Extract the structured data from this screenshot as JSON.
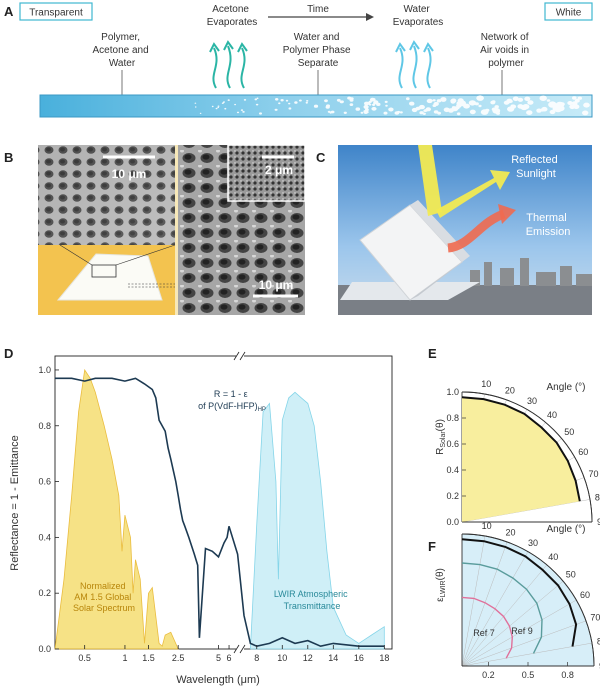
{
  "panel_a": {
    "label": "A",
    "left_box": "Transparent",
    "right_box": "White",
    "stage1": [
      "Polymer,",
      "Acetone and",
      "Water"
    ],
    "acetone": [
      "Acetone",
      "Evaporates"
    ],
    "time": "Time",
    "phase": [
      "Water and",
      "Polymer Phase",
      "Separate"
    ],
    "water_evap": [
      "Water",
      "Evaporates"
    ],
    "network": [
      "Network of",
      "Air voids in",
      "polymer"
    ]
  },
  "panel_b": {
    "label": "B",
    "scale_top": "10 μm",
    "scale_inset": "2 μm",
    "scale_bottom": "10 μm"
  },
  "panel_c": {
    "label": "C",
    "reflected": [
      "Reflected",
      "Sunlight"
    ],
    "thermal": [
      "Thermal",
      "Emission"
    ]
  },
  "panel_d": {
    "label": "D",
    "ylabel": "Reflectance = 1 - Emittance",
    "xlabel": "Wavelength (μm)",
    "curve_label": [
      "R = 1 - ε",
      "of P(VdF-HFP)"
    ],
    "curve_sub": "HP",
    "solar_label": [
      "Normalized",
      "AM 1.5 Global",
      "Solar Spectrum"
    ],
    "lwir_label": [
      "LWIR Atmospheric",
      "Transmittance"
    ]
  },
  "panel_e": {
    "label": "E",
    "angle_label": "Angle (°)",
    "ylabel": "R",
    "ysub": "Solar",
    "yarg": "(θ)"
  },
  "panel_f": {
    "label": "F",
    "angle_label": "Angle (°)",
    "ylabel": "ε",
    "ysub": "LWIR",
    "yarg": "(θ)",
    "ref7": "Ref 7",
    "ref9": "Ref 9"
  },
  "chart_data": [
    {
      "type": "line",
      "panel": "D",
      "xlabel": "Wavelength (μm)",
      "ylabel": "Reflectance = 1 - Emittance",
      "x_ticks_left": [
        "0.5",
        "1",
        "1.5",
        "2.5",
        "5",
        "6"
      ],
      "x_ticks_right": [
        "8",
        "10",
        "12",
        "14",
        "16",
        "18"
      ],
      "y_ticks": [
        "0.0",
        "0.2",
        "0.4",
        "0.6",
        "0.8",
        "1.0"
      ],
      "ylim": [
        0,
        1.05
      ],
      "series": [
        {
          "name": "R = 1 - ε of P(VdF-HFP)HP",
          "color": "#1d3a52",
          "x": [
            0.3,
            0.4,
            0.5,
            0.6,
            0.8,
            1.0,
            1.2,
            1.4,
            1.6,
            1.7,
            1.8,
            2.0,
            2.1,
            2.2,
            2.3,
            2.4,
            2.5,
            2.6,
            2.7,
            2.8,
            3.0,
            3.3,
            3.5,
            3.6,
            4.0,
            4.5,
            5.0,
            5.5,
            5.8,
            6.0,
            6.5,
            7.0,
            7.5,
            8.0,
            9.0,
            10.0,
            11.0,
            12.0,
            13.0,
            14.0,
            16.0,
            18.0
          ],
          "y": [
            0.97,
            0.97,
            0.96,
            0.97,
            0.97,
            0.96,
            0.97,
            0.95,
            0.93,
            0.9,
            0.82,
            0.78,
            0.72,
            0.68,
            0.64,
            0.6,
            0.55,
            0.5,
            0.46,
            0.44,
            0.4,
            0.34,
            0.3,
            0.04,
            0.36,
            0.35,
            0.33,
            0.38,
            0.4,
            0.44,
            0.34,
            0.12,
            0.02,
            0.01,
            0.02,
            0.04,
            0.02,
            0.03,
            0.01,
            0.02,
            0.01,
            0.01
          ]
        },
        {
          "name": "Normalized AM 1.5 Global Solar Spectrum",
          "color": "#e8b62a",
          "x": [
            0.3,
            0.35,
            0.4,
            0.45,
            0.5,
            0.55,
            0.6,
            0.7,
            0.8,
            0.9,
            0.95,
            1.0,
            1.1,
            1.15,
            1.2,
            1.3,
            1.4,
            1.5,
            1.6,
            1.8,
            1.9,
            2.0,
            2.2,
            2.5
          ],
          "y": [
            0.0,
            0.25,
            0.55,
            0.85,
            1.0,
            0.97,
            0.92,
            0.8,
            0.68,
            0.55,
            0.35,
            0.48,
            0.4,
            0.2,
            0.32,
            0.25,
            0.02,
            0.2,
            0.22,
            0.02,
            0.01,
            0.05,
            0.06,
            0.0
          ]
        },
        {
          "name": "LWIR Atmospheric Transmittance",
          "color": "#7fd3e8",
          "x": [
            7.5,
            8.0,
            8.5,
            9.0,
            9.5,
            9.7,
            10.0,
            10.5,
            11.0,
            11.5,
            12.0,
            12.5,
            13.0,
            13.5,
            14.0,
            15.0,
            16.0,
            17.0,
            18.0
          ],
          "y": [
            0.0,
            0.45,
            0.85,
            0.88,
            0.6,
            0.25,
            0.82,
            0.9,
            0.92,
            0.9,
            0.88,
            0.8,
            0.6,
            0.35,
            0.15,
            0.05,
            0.02,
            0.05,
            0.08
          ]
        }
      ]
    },
    {
      "type": "polar",
      "panel": "E",
      "ylabel": "RSolar(θ)",
      "r_ticks": [
        "0.0",
        "0.2",
        "0.4",
        "0.6",
        "0.8",
        "1.0"
      ],
      "angle_ticks": [
        10,
        20,
        30,
        40,
        50,
        60,
        70,
        80,
        90
      ],
      "angle": [
        0,
        10,
        20,
        30,
        40,
        50,
        60,
        70,
        80
      ],
      "value": [
        0.96,
        0.96,
        0.96,
        0.96,
        0.95,
        0.95,
        0.94,
        0.93,
        0.92
      ]
    },
    {
      "type": "polar",
      "panel": "F",
      "ylabel": "εLWIR(θ)",
      "r_ticks": [
        "0.2",
        "0.5",
        "0.8"
      ],
      "angle_ticks": [
        10,
        20,
        30,
        40,
        50,
        60,
        70,
        80,
        90
      ],
      "series": [
        {
          "name": "P(VdF-HFP)HP",
          "color": "#111111",
          "angle": [
            0,
            10,
            20,
            30,
            40,
            50,
            60,
            70,
            80
          ],
          "value": [
            0.96,
            0.96,
            0.96,
            0.96,
            0.95,
            0.95,
            0.94,
            0.92,
            0.85
          ]
        },
        {
          "name": "Ref 9",
          "color": "#5a9c9c",
          "angle": [
            0,
            10,
            20,
            30,
            40,
            50,
            60,
            70,
            80
          ],
          "value": [
            0.78,
            0.78,
            0.78,
            0.77,
            0.76,
            0.74,
            0.7,
            0.64,
            0.55
          ]
        },
        {
          "name": "Ref 7",
          "color": "#e0709a",
          "angle": [
            0,
            10,
            20,
            30,
            40,
            50,
            60,
            70,
            80
          ],
          "value": [
            0.52,
            0.52,
            0.51,
            0.5,
            0.49,
            0.47,
            0.44,
            0.4,
            0.34
          ]
        }
      ]
    }
  ]
}
